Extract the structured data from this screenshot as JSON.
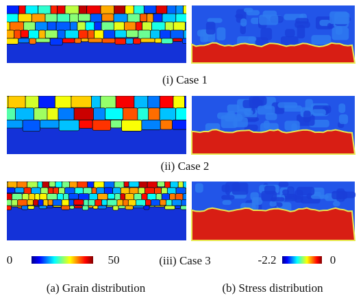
{
  "cases": [
    {
      "caption": "(i) Case 1"
    },
    {
      "caption": "(ii) Case 2"
    },
    {
      "caption": "(iii) Case 3"
    }
  ],
  "colorbars": {
    "grain": {
      "min": 0,
      "max": 50
    },
    "stress": {
      "min": -2.2,
      "max": 0
    }
  },
  "columns": {
    "a": "(a) Grain distribution",
    "b": "(b) Stress distribution"
  }
}
